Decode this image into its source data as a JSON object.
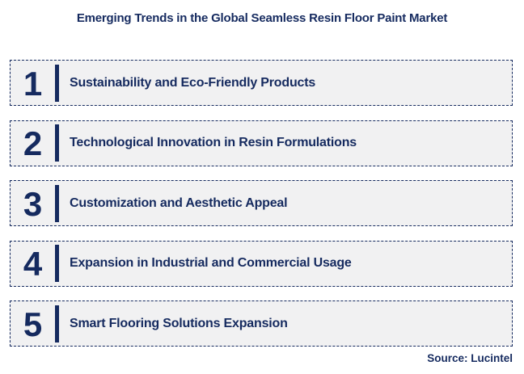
{
  "title": "Emerging Trends in the Global Seamless Resin Floor Paint Market",
  "trends": [
    {
      "number": "1",
      "label": "Sustainability and Eco-Friendly Products"
    },
    {
      "number": "2",
      "label": "Technological Innovation in Resin Formulations"
    },
    {
      "number": "3",
      "label": "Customization and Aesthetic Appeal"
    },
    {
      "number": "4",
      "label": "Expansion in Industrial and Commercial Usage"
    },
    {
      "number": "5",
      "label": "Smart Flooring Solutions Expansion"
    }
  ],
  "source": "Source: Lucintel",
  "colors": {
    "navy": "#152a5f",
    "box_background": "#f1f1f2",
    "page_background": "#ffffff"
  }
}
